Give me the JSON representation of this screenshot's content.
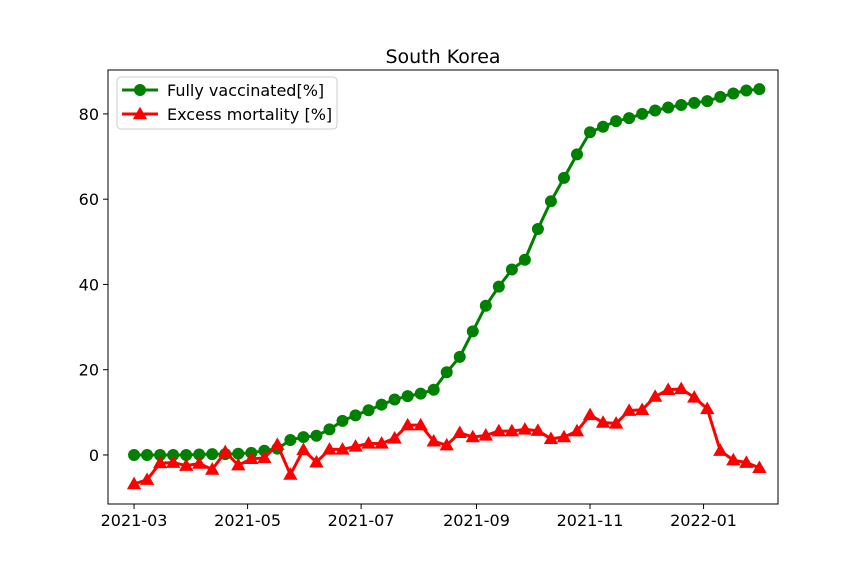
{
  "chart_data": {
    "type": "line",
    "title": "South Korea",
    "xlabel": "",
    "ylabel": "",
    "x_ticks": [
      "2021-03",
      "2021-05",
      "2021-07",
      "2021-09",
      "2021-11",
      "2022-01"
    ],
    "y_ticks": [
      "0",
      "20",
      "40",
      "60",
      "80"
    ],
    "xlim": [
      "2021-02-15",
      "2022-02-10"
    ],
    "ylim": [
      -11.5,
      90.3
    ],
    "grid": false,
    "legend_position": "top-left",
    "series": [
      {
        "name": "Fully vaccinated[%]",
        "color": "#008000",
        "marker": "circle",
        "x": [
          "2021-03-01",
          "2021-03-08",
          "2021-03-15",
          "2021-03-22",
          "2021-03-29",
          "2021-04-05",
          "2021-04-12",
          "2021-04-19",
          "2021-04-26",
          "2021-05-03",
          "2021-05-10",
          "2021-05-17",
          "2021-05-24",
          "2021-05-31",
          "2021-06-07",
          "2021-06-14",
          "2021-06-21",
          "2021-06-28",
          "2021-07-05",
          "2021-07-12",
          "2021-07-19",
          "2021-07-26",
          "2021-08-02",
          "2021-08-09",
          "2021-08-16",
          "2021-08-23",
          "2021-08-30",
          "2021-09-06",
          "2021-09-13",
          "2021-09-20",
          "2021-09-27",
          "2021-10-04",
          "2021-10-11",
          "2021-10-18",
          "2021-10-25",
          "2021-11-01",
          "2021-11-08",
          "2021-11-15",
          "2021-11-22",
          "2021-11-29",
          "2021-12-06",
          "2021-12-13",
          "2021-12-20",
          "2021-12-27",
          "2022-01-03",
          "2022-01-10",
          "2022-01-17",
          "2022-01-24",
          "2022-01-31"
        ],
        "y": [
          0.0,
          0.0,
          0.0,
          0.0,
          0.0,
          0.1,
          0.2,
          0.2,
          0.3,
          0.5,
          1.0,
          1.5,
          3.5,
          4.2,
          4.5,
          6.0,
          8.0,
          9.3,
          10.5,
          11.8,
          13.0,
          13.8,
          14.4,
          15.3,
          19.4,
          23.0,
          29.0,
          35.0,
          39.5,
          43.5,
          45.8,
          53.0,
          59.5,
          65.0,
          70.5,
          75.7,
          77.0,
          78.3,
          79.0,
          80.0,
          80.8,
          81.5,
          82.1,
          82.6,
          83.0,
          84.0,
          84.8,
          85.5,
          85.8
        ]
      },
      {
        "name": "Excess mortality [%]",
        "color": "#ff0000",
        "marker": "triangle",
        "x": [
          "2021-03-01",
          "2021-03-08",
          "2021-03-15",
          "2021-03-22",
          "2021-03-29",
          "2021-04-05",
          "2021-04-12",
          "2021-04-19",
          "2021-04-26",
          "2021-05-03",
          "2021-05-10",
          "2021-05-17",
          "2021-05-24",
          "2021-05-31",
          "2021-06-07",
          "2021-06-14",
          "2021-06-21",
          "2021-06-28",
          "2021-07-05",
          "2021-07-12",
          "2021-07-19",
          "2021-07-26",
          "2021-08-02",
          "2021-08-09",
          "2021-08-16",
          "2021-08-23",
          "2021-08-30",
          "2021-09-06",
          "2021-09-13",
          "2021-09-20",
          "2021-09-27",
          "2021-10-04",
          "2021-10-11",
          "2021-10-18",
          "2021-10-25",
          "2021-11-01",
          "2021-11-08",
          "2021-11-15",
          "2021-11-22",
          "2021-11-29",
          "2021-12-06",
          "2021-12-13",
          "2021-12-20",
          "2021-12-27",
          "2022-01-03",
          "2022-01-10",
          "2022-01-17",
          "2022-01-24",
          "2022-01-31"
        ],
        "y": [
          -6.8,
          -5.8,
          -1.9,
          -1.8,
          -2.5,
          -2.0,
          -3.4,
          0.7,
          -2.4,
          -0.9,
          -0.7,
          2.4,
          -4.6,
          1.2,
          -1.7,
          1.3,
          1.3,
          2.0,
          2.7,
          2.7,
          3.9,
          7.0,
          7.0,
          3.2,
          2.3,
          5.2,
          4.2,
          4.6,
          5.6,
          5.6,
          6.0,
          5.7,
          3.8,
          4.2,
          5.6,
          9.4,
          7.6,
          7.4,
          10.4,
          10.6,
          13.7,
          15.3,
          15.5,
          13.5,
          10.8,
          1.0,
          -1.2,
          -1.8,
          -3.0
        ]
      }
    ]
  }
}
